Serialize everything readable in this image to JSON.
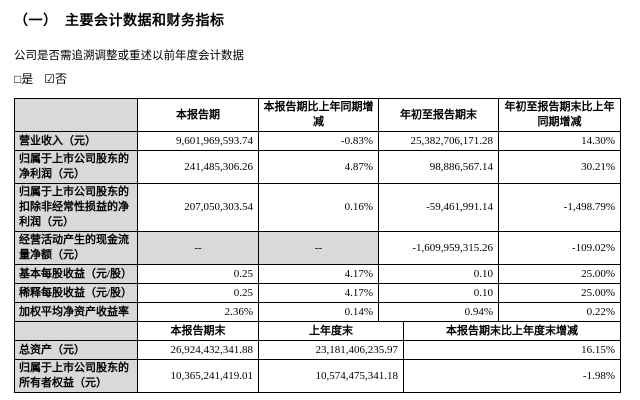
{
  "page": {
    "section_title": "（一）　主要会计数据和财务指标",
    "restate_question": "公司是否需追溯调整或重述以前年度会计数据",
    "option_yes": "□是",
    "option_no": "☑否"
  },
  "colors": {
    "shaded_cell": "#d9d9d9",
    "border": "#000000"
  },
  "table1": {
    "headers": [
      "",
      "本报告期",
      "本报告期比上年同期增减",
      "年初至报告期末",
      "年初至报告期末比上年同期增减"
    ],
    "rows": [
      {
        "label": "营业收入（元）",
        "values": [
          "9,601,969,593.74",
          "-0.83%",
          "25,382,706,171.28",
          "14.30%"
        ]
      },
      {
        "label": "归属于上市公司股东的净利润（元）",
        "values": [
          "241,485,306.26",
          "4.87%",
          "98,886,567.14",
          "30.21%"
        ]
      },
      {
        "label": "归属于上市公司股东的扣除非经常性损益的净利润（元）",
        "values": [
          "207,050,303.54",
          "0.16%",
          "-59,461,991.14",
          "-1,498.79%"
        ]
      },
      {
        "label": "经营活动产生的现金流量净额（元）",
        "values": [
          "--",
          "--",
          "-1,609,959,315.26",
          "-109.02%"
        ]
      },
      {
        "label": "基本每股收益（元/股）",
        "values": [
          "0.25",
          "4.17%",
          "0.10",
          "25.00%"
        ]
      },
      {
        "label": "稀释每股收益（元/股）",
        "values": [
          "0.25",
          "4.17%",
          "0.10",
          "25.00%"
        ]
      },
      {
        "label": "加权平均净资产收益率",
        "values": [
          "2.36%",
          "0.14%",
          "0.94%",
          "0.22%"
        ]
      }
    ]
  },
  "table2": {
    "headers": [
      "",
      "本报告期末",
      "上年度末",
      "本报告期末比上年度末增减"
    ],
    "rows": [
      {
        "label": "总资产（元）",
        "values": [
          "26,924,432,341.88",
          "23,181,406,235.97",
          "16.15%"
        ]
      },
      {
        "label": "归属于上市公司股东的所有者权益（元）",
        "values": [
          "10,365,241,419.01",
          "10,574,475,341.18",
          "-1.98%"
        ]
      }
    ]
  }
}
